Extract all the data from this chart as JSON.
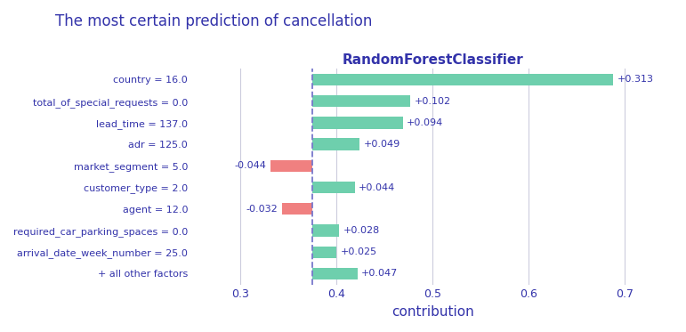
{
  "title": "The most certain prediction of cancellation",
  "subtitle": "RandomForestClassifier",
  "xlabel": "contribution",
  "base_value": 0.375,
  "labels": [
    "country = 16.0",
    "total_of_special_requests = 0.0",
    "lead_time = 137.0",
    "adr = 125.0",
    "market_segment = 5.0",
    "customer_type = 2.0",
    "agent = 12.0",
    "required_car_parking_spaces = 0.0",
    "arrival_date_week_number = 25.0",
    "+ all other factors"
  ],
  "shap_values": [
    0.313,
    0.102,
    0.094,
    0.049,
    -0.044,
    0.044,
    -0.032,
    0.028,
    0.025,
    0.047
  ],
  "annotations": [
    "+0.313",
    "+0.102",
    "+0.094",
    "+0.049",
    "-0.044",
    "+0.044",
    "-0.032",
    "+0.028",
    "+0.025",
    "+0.047"
  ],
  "positive_color": "#6ecfad",
  "negative_color": "#f08080",
  "title_color": "#3333aa",
  "label_color": "#3333aa",
  "subtitle_color": "#3333aa",
  "xlabel_color": "#3333aa",
  "tick_color": "#3333aa",
  "dashed_line_color": "#7777cc",
  "background_color": "#ffffff",
  "grid_color": "#ccccdd",
  "xlim": [
    0.25,
    0.75
  ],
  "xticks": [
    0.3,
    0.4,
    0.5,
    0.6,
    0.7
  ],
  "bar_height": 0.55
}
